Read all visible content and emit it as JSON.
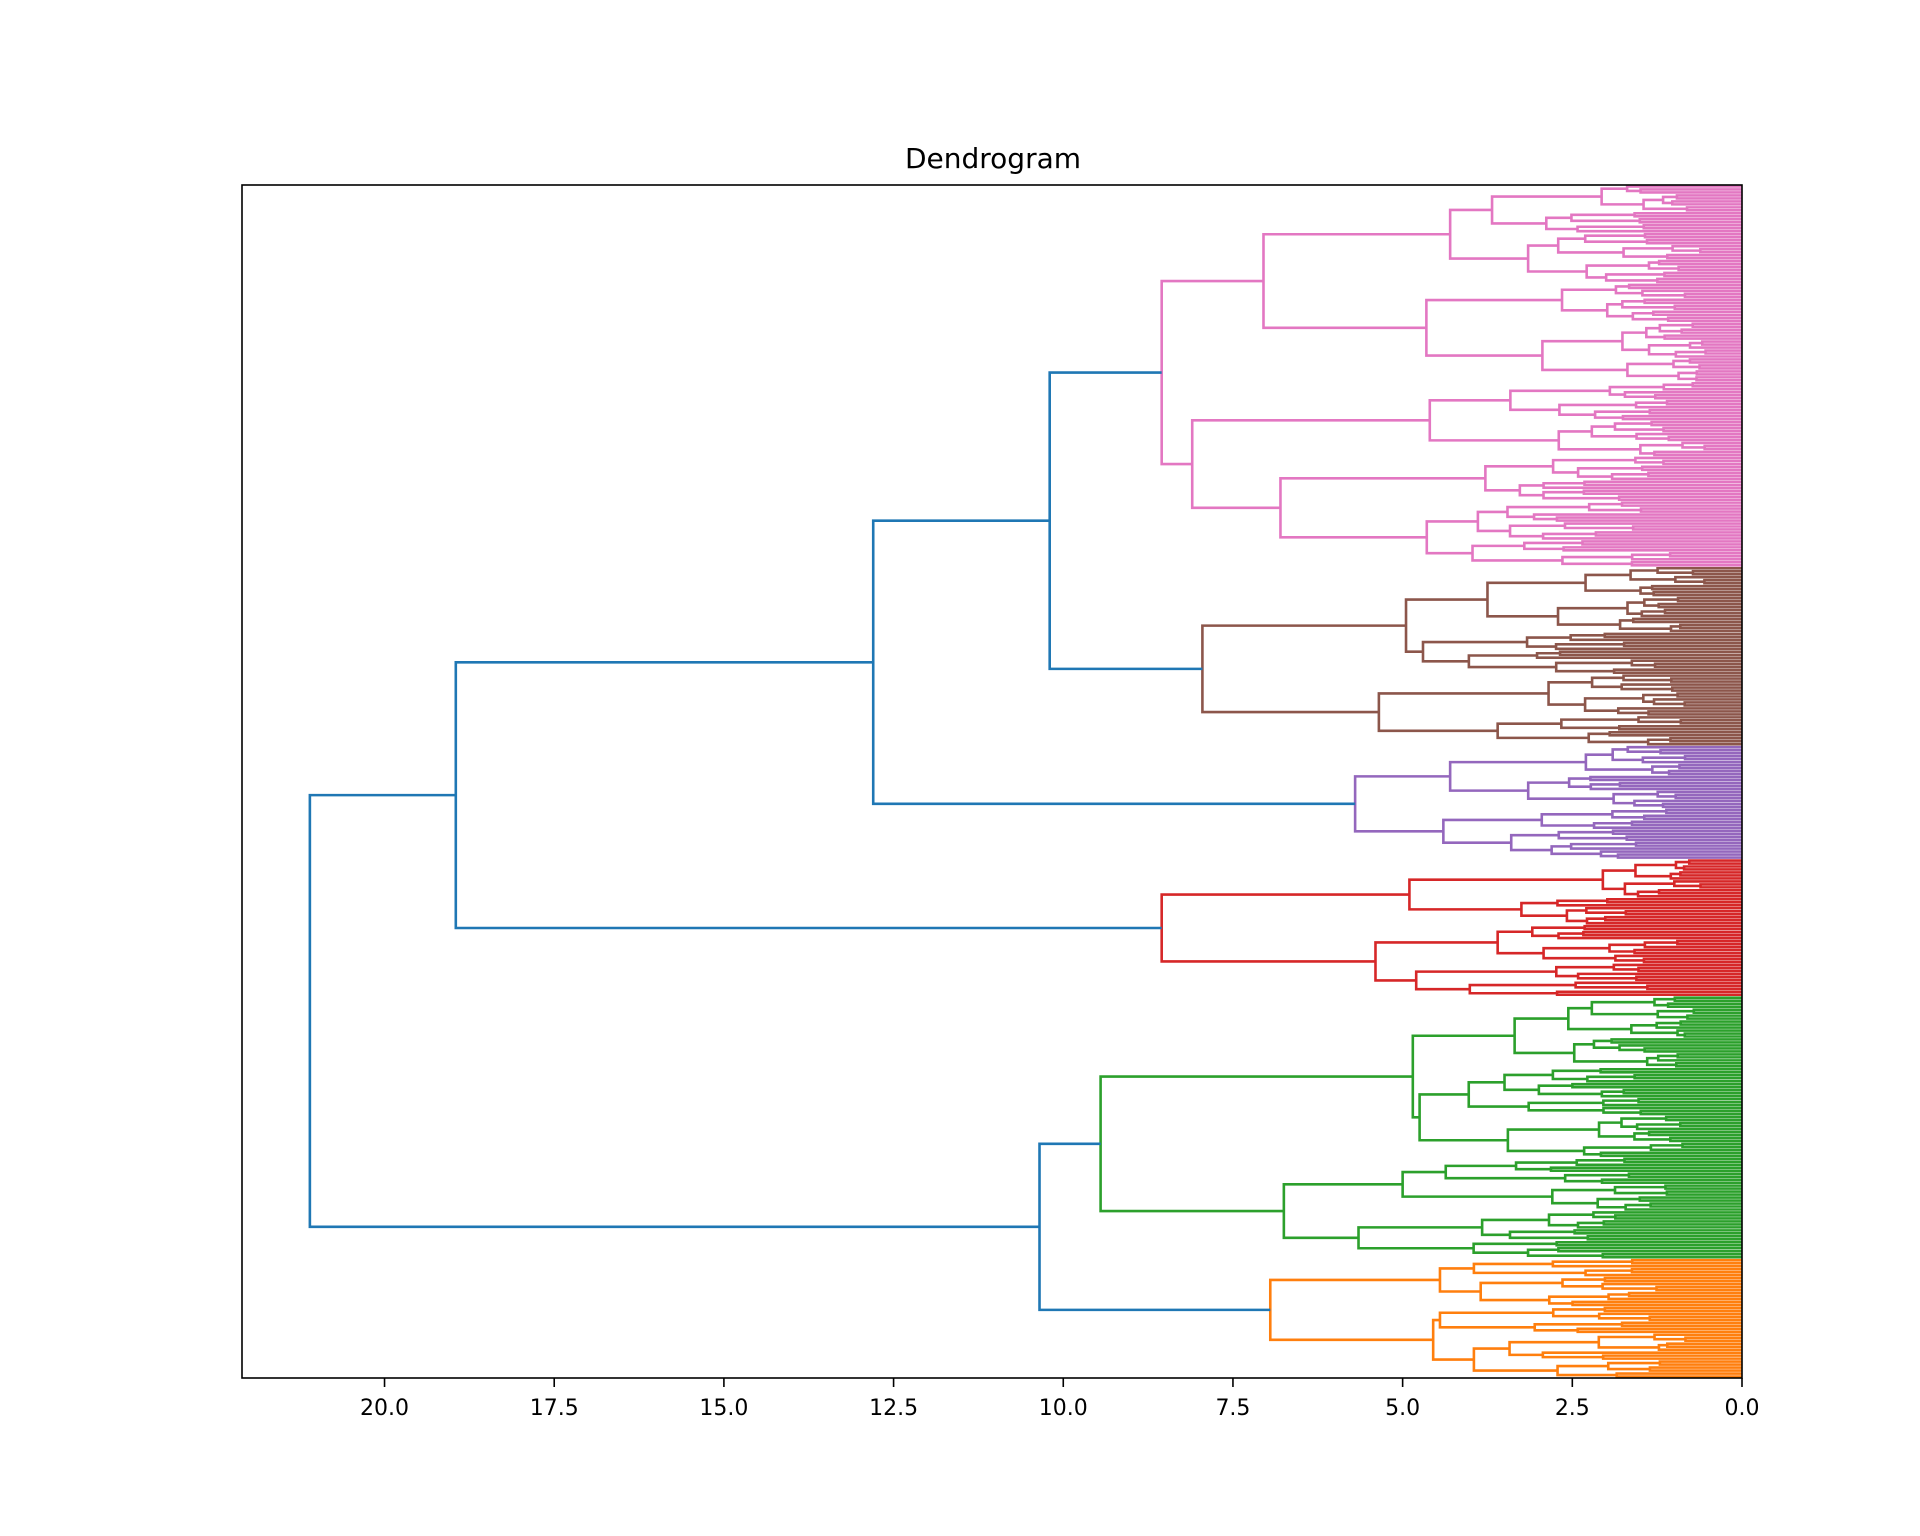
{
  "chart_data": {
    "type": "dendrogram",
    "title": "Dendrogram",
    "xlabel": "",
    "ylabel": "",
    "orientation": "left",
    "xlim": [
      22.1,
      0.0
    ],
    "x_ticks": [
      20.0,
      17.5,
      15.0,
      12.5,
      10.0,
      7.5,
      5.0,
      2.5,
      0.0
    ],
    "x_tick_labels": [
      "20.0",
      "17.5",
      "15.0",
      "12.5",
      "10.0",
      "7.5",
      "5.0",
      "2.5",
      "0.0"
    ],
    "grid": false,
    "leaf_count": 400,
    "colors": {
      "link_above_threshold": "#1f77b4",
      "clusters": [
        "#ff7f0e",
        "#2ca02c",
        "#d62728",
        "#9467bd",
        "#8c564b",
        "#e377c2"
      ]
    },
    "clusters": [
      {
        "color": "#ff7f0e",
        "leaf_start": 0,
        "leaf_end": 40,
        "merge_height": 6.95,
        "sub": [
          {
            "h": 4.55,
            "sub": [
              {
                "h": 3.95
              },
              {
                "h": 4.45
              }
            ]
          },
          {
            "h": 4.45,
            "sub": [
              {
                "h": 3.85
              },
              {
                "h": 3.95
              }
            ]
          }
        ]
      },
      {
        "color": "#2ca02c",
        "leaf_start": 40,
        "leaf_end": 128,
        "merge_height": 9.45,
        "sub": [
          {
            "h": 6.75,
            "sub": [
              {
                "h": 5.65
              },
              {
                "h": 5.0
              }
            ]
          },
          {
            "h": 4.85,
            "sub": [
              {
                "h": 4.75
              },
              {
                "h": 3.35
              }
            ]
          }
        ]
      },
      {
        "color": "#d62728",
        "leaf_start": 128,
        "leaf_end": 174,
        "merge_height": 8.55,
        "sub": [
          {
            "h": 5.4,
            "sub": [
              {
                "h": 4.8
              },
              {
                "h": 3.6
              }
            ]
          },
          {
            "h": 4.9,
            "sub": [
              {
                "h": 3.25
              },
              {
                "h": 2.05
              }
            ]
          }
        ]
      },
      {
        "color": "#9467bd",
        "leaf_start": 174,
        "leaf_end": 212,
        "merge_height": 5.7,
        "sub": [
          {
            "h": 4.4,
            "sub": [
              {
                "h": 3.4
              },
              {
                "h": 2.95
              }
            ]
          },
          {
            "h": 4.3,
            "sub": [
              {
                "h": 3.15
              },
              {
                "h": 2.3
              }
            ]
          }
        ]
      },
      {
        "color": "#8c564b",
        "leaf_start": 212,
        "leaf_end": 272,
        "merge_height": 7.95,
        "sub": [
          {
            "h": 5.35,
            "sub": [
              {
                "h": 3.6
              },
              {
                "h": 2.85
              }
            ]
          },
          {
            "h": 4.95,
            "sub": [
              {
                "h": 4.7
              },
              {
                "h": 3.75
              }
            ]
          }
        ]
      },
      {
        "color": "#e377c2",
        "leaf_start": 272,
        "leaf_end": 400,
        "merge_height": 8.55,
        "sub": [
          {
            "h": 8.1,
            "sub": [
              {
                "h": 6.8
              },
              {
                "h": 4.6
              }
            ]
          },
          {
            "h": 7.05,
            "sub": [
              {
                "h": 4.65
              },
              {
                "h": 4.3
              }
            ]
          }
        ]
      }
    ],
    "top_links": [
      {
        "height": 10.2,
        "children": [
          "cluster:5",
          "cluster:4"
        ]
      },
      {
        "height": 12.8,
        "children": [
          "link:0",
          "cluster:3"
        ]
      },
      {
        "height": 18.95,
        "children": [
          "link:1",
          "cluster:2"
        ]
      },
      {
        "height": 10.35,
        "children": [
          "cluster:1",
          "cluster:0"
        ]
      },
      {
        "height": 21.1,
        "children": [
          "link:2",
          "link:3"
        ]
      }
    ]
  }
}
